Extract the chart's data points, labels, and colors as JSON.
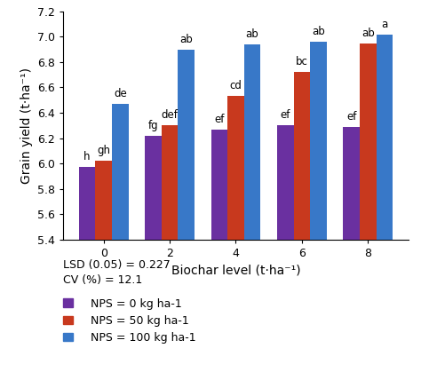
{
  "biochar_levels": [
    0,
    2,
    4,
    6,
    8
  ],
  "nps0_values": [
    5.97,
    6.22,
    6.27,
    6.3,
    6.29
  ],
  "nps50_values": [
    6.02,
    6.3,
    6.53,
    6.72,
    6.95
  ],
  "nps100_values": [
    6.47,
    6.9,
    6.94,
    6.96,
    7.02
  ],
  "nps0_labels": [
    "h",
    "fg",
    "ef",
    "ef",
    "ef"
  ],
  "nps50_labels": [
    "gh",
    "def",
    "cd",
    "bc",
    "ab"
  ],
  "nps100_labels": [
    "de",
    "ab",
    "ab",
    "ab",
    "a"
  ],
  "bar_colors": [
    "#6a30a0",
    "#c8391e",
    "#3878c8"
  ],
  "legend_labels": [
    "NPS = 0 kg ha-1",
    "NPS = 50 kg ha-1",
    "NPS = 100 kg ha-1"
  ],
  "xlabel": "Biochar level (t·ha⁻¹)",
  "ylabel": "Grain yield (t·ha⁻¹)",
  "ylim": [
    5.4,
    7.2
  ],
  "yticks": [
    5.4,
    5.6,
    5.8,
    6.0,
    6.2,
    6.4,
    6.6,
    6.8,
    7.0,
    7.2
  ],
  "lsd_text": "LSD (0.05) = 0.227",
  "cv_text": "CV (%) = 12.1",
  "bar_width": 0.25,
  "label_fontsize": 8.5,
  "tick_fontsize": 9,
  "axis_label_fontsize": 10
}
